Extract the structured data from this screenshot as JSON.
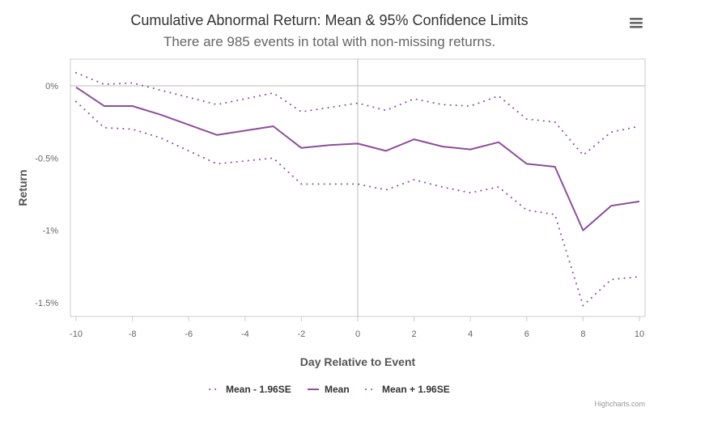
{
  "chart_data": {
    "type": "line",
    "title": "Cumulative Abnormal Return: Mean & 95% Confidence Limits",
    "subtitle": "There are 985 events in total with non-missing returns.",
    "xlabel": "Day Relative to Event",
    "ylabel": "Return",
    "xlim": [
      -10,
      10
    ],
    "ylim": [
      -1.6,
      0.18
    ],
    "x_ticks": [
      -10,
      -8,
      -6,
      -4,
      -2,
      0,
      2,
      4,
      6,
      8,
      10
    ],
    "y_ticks": [
      {
        "value": 0,
        "label": "0%"
      },
      {
        "value": -0.5,
        "label": "-0.5%"
      },
      {
        "value": -1,
        "label": "-1%"
      },
      {
        "value": -1.5,
        "label": "-1.5%"
      }
    ],
    "x": [
      -10,
      -9,
      -8,
      -7,
      -6,
      -5,
      -4,
      -3,
      -2,
      -1,
      0,
      1,
      2,
      3,
      4,
      5,
      6,
      7,
      8,
      9,
      10
    ],
    "series": [
      {
        "name": "Mean - 1.96SE",
        "style": "dotted",
        "values": [
          -0.11,
          -0.29,
          -0.3,
          -0.36,
          -0.45,
          -0.54,
          -0.52,
          -0.5,
          -0.68,
          -0.68,
          -0.68,
          -0.72,
          -0.65,
          -0.7,
          -0.74,
          -0.7,
          -0.86,
          -0.89,
          -1.52,
          -1.34,
          -1.32
        ]
      },
      {
        "name": "Mean",
        "style": "solid",
        "values": [
          -0.01,
          -0.14,
          -0.14,
          -0.2,
          -0.27,
          -0.34,
          -0.31,
          -0.28,
          -0.43,
          -0.41,
          -0.4,
          -0.45,
          -0.37,
          -0.42,
          -0.44,
          -0.39,
          -0.54,
          -0.56,
          -1.0,
          -0.83,
          -0.8
        ]
      },
      {
        "name": "Mean + 1.96SE",
        "style": "dotted",
        "values": [
          0.09,
          0.01,
          0.02,
          -0.03,
          -0.08,
          -0.13,
          -0.09,
          -0.05,
          -0.18,
          -0.15,
          -0.12,
          -0.17,
          -0.09,
          -0.13,
          -0.14,
          -0.07,
          -0.23,
          -0.25,
          -0.48,
          -0.32,
          -0.28
        ]
      }
    ],
    "series_color": "#8e4e9a",
    "grid": {
      "x": false,
      "y": false
    },
    "reference_lines": {
      "x": 0,
      "y": 0
    },
    "legend_position": "bottom-center",
    "credits": "Highcharts.com"
  },
  "menu": {
    "icon": "hamburger-menu-icon"
  }
}
